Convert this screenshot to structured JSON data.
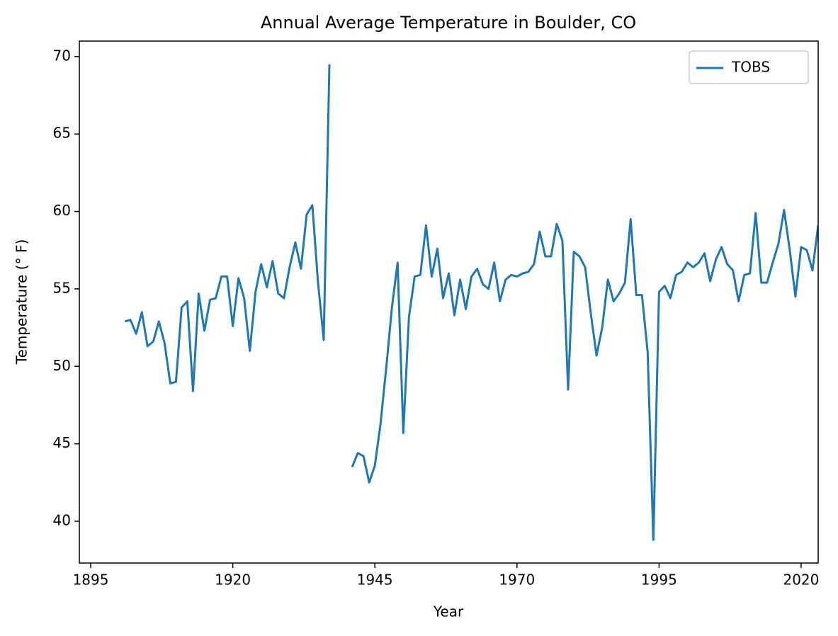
{
  "chart_data": {
    "type": "line",
    "title": "Annual Average Temperature in Boulder, CO",
    "x_label": "Year",
    "y_label": "Temperature (° F)",
    "x": [
      1901,
      1902,
      1903,
      1904,
      1905,
      1906,
      1907,
      1908,
      1909,
      1910,
      1911,
      1912,
      1913,
      1914,
      1915,
      1916,
      1917,
      1918,
      1919,
      1920,
      1921,
      1922,
      1923,
      1924,
      1925,
      1926,
      1927,
      1928,
      1929,
      1930,
      1931,
      1932,
      1933,
      1934,
      1935,
      1936,
      1937,
      1938,
      1939,
      1940,
      1941,
      1942,
      1943,
      1944,
      1945,
      1946,
      1947,
      1948,
      1949,
      1950,
      1951,
      1952,
      1953,
      1954,
      1955,
      1956,
      1957,
      1958,
      1959,
      1960,
      1961,
      1962,
      1963,
      1964,
      1965,
      1966,
      1967,
      1968,
      1969,
      1970,
      1971,
      1972,
      1973,
      1974,
      1975,
      1976,
      1977,
      1978,
      1979,
      1980,
      1981,
      1982,
      1983,
      1984,
      1985,
      1986,
      1987,
      1988,
      1989,
      1990,
      1991,
      1992,
      1993,
      1994,
      1995,
      1996,
      1997,
      1998,
      1999,
      2000,
      2001,
      2002,
      2003,
      2004,
      2005,
      2006,
      2007,
      2008,
      2009,
      2010,
      2011,
      2012,
      2013,
      2014,
      2015,
      2016,
      2017,
      2018,
      2019,
      2020,
      2021,
      2022,
      2023
    ],
    "series": [
      {
        "name": "TOBS",
        "color": "#1f77b4",
        "values": [
          52.9,
          53.0,
          52.1,
          53.5,
          51.3,
          51.6,
          52.9,
          51.5,
          48.9,
          49.0,
          53.8,
          54.2,
          48.4,
          54.7,
          52.3,
          54.3,
          54.4,
          55.8,
          55.8,
          52.6,
          55.7,
          54.4,
          51.0,
          54.8,
          56.6,
          55.1,
          56.8,
          54.7,
          54.4,
          56.4,
          58.0,
          56.3,
          59.8,
          60.4,
          55.4,
          51.7,
          69.5,
          null,
          null,
          null,
          43.5,
          44.4,
          44.2,
          42.5,
          43.6,
          46.3,
          49.9,
          53.8,
          56.7,
          45.7,
          53.2,
          55.8,
          55.9,
          59.1,
          55.8,
          57.6,
          54.4,
          56.0,
          53.3,
          55.6,
          53.7,
          55.8,
          56.3,
          55.3,
          55.0,
          56.7,
          54.2,
          55.6,
          55.9,
          55.8,
          56.0,
          56.1,
          56.6,
          58.7,
          57.1,
          57.1,
          59.2,
          58.1,
          48.5,
          57.4,
          57.1,
          56.4,
          53.4,
          50.7,
          52.5,
          55.6,
          54.2,
          54.7,
          55.4,
          59.5,
          54.6,
          54.6,
          50.9,
          38.8,
          54.8,
          55.2,
          54.4,
          55.9,
          56.1,
          56.7,
          56.4,
          56.7,
          57.3,
          55.5,
          56.9,
          57.7,
          56.6,
          56.2,
          54.2,
          55.9,
          56.0,
          59.9,
          55.4,
          55.4,
          56.7,
          57.9,
          60.1,
          57.5,
          54.5,
          57.7,
          57.5,
          56.2,
          59.1
        ]
      }
    ],
    "xlim": [
      1893,
      2023
    ],
    "xticks": [
      1895,
      1920,
      1945,
      1970,
      1995,
      2020
    ],
    "ylim": [
      37.3,
      71.0
    ],
    "yticks": [
      40,
      45,
      50,
      55,
      60,
      65,
      70
    ],
    "grid": false,
    "legend": "upper right"
  }
}
